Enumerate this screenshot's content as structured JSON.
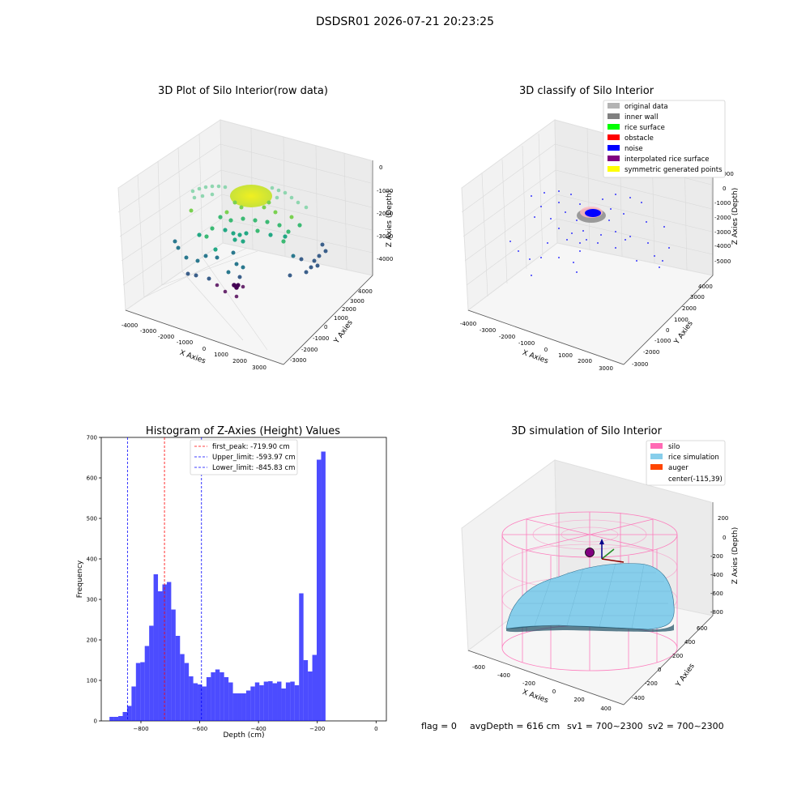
{
  "figure": {
    "suptitle": "DSDSR01 2026-07-21 20:23:25",
    "footer": {
      "flag": "flag = 0",
      "avg_depth": "avgDepth = 616 cm",
      "sv1": "sv1 = 700~2300",
      "sv2": "sv2 = 700~2300"
    }
  },
  "panels": {
    "raw": {
      "title": "3D Plot of Silo Interior(row data)",
      "xlabel": "X Axies",
      "ylabel": "Y Axies",
      "zlabel": "Z Axies (Depth)",
      "xticks": [
        "-4000",
        "-3000",
        "-2000",
        "-1000",
        "0",
        "1000",
        "2000",
        "3000"
      ],
      "yticks": [
        "-3000",
        "-2000",
        "-1000",
        "0",
        "1000",
        "2000",
        "3000",
        "4000"
      ],
      "zticks": [
        "-4000",
        "-3000",
        "-2000",
        "-1000",
        "0"
      ]
    },
    "classify": {
      "title": "3D classify of Silo Interior",
      "xlabel": "X Axies",
      "ylabel": "Y Axies",
      "zlabel": "Z Axies (Depth)",
      "xticks": [
        "-4000",
        "-3000",
        "-2000",
        "-1000",
        "0",
        "1000",
        "2000",
        "3000"
      ],
      "yticks": [
        "-3000",
        "-2000",
        "-1000",
        "0",
        "1000",
        "2000",
        "3000",
        "4000"
      ],
      "zticks": [
        "-5000",
        "-4000",
        "-3000",
        "-2000",
        "-1000",
        "0",
        "1000"
      ],
      "legend": [
        {
          "label": "original data",
          "color": "#b3b3b3"
        },
        {
          "label": "inner wall",
          "color": "#808080"
        },
        {
          "label": "rice surface",
          "color": "#00ff00"
        },
        {
          "label": "obstacle",
          "color": "#ff0000"
        },
        {
          "label": "noise",
          "color": "#0000ff"
        },
        {
          "label": "interpolated rice surface",
          "color": "#800080"
        },
        {
          "label": "symmetric generated points",
          "color": "#ffff00"
        }
      ]
    },
    "simulation": {
      "title": "3D simulation of Silo Interior",
      "xlabel": "X Axies",
      "ylabel": "Y Axies",
      "zlabel": "Z Axies (Depth)",
      "xticks": [
        "-600",
        "-400",
        "-200",
        "0",
        "200",
        "400"
      ],
      "yticks": [
        "-400",
        "-200",
        "0",
        "200",
        "400",
        "600"
      ],
      "zticks": [
        "-800",
        "-600",
        "-400",
        "-200",
        "0",
        "200"
      ],
      "legend": [
        {
          "label": "silo",
          "color": "#ff69b4"
        },
        {
          "label": "rice simulation",
          "color": "#87ceeb"
        },
        {
          "label": "auger",
          "color": "#ff4500"
        },
        {
          "label": "center(-115,39)",
          "color": ""
        }
      ]
    }
  },
  "chart_data": {
    "type": "bar",
    "title": "Histogram of Z-Axies (Height) Values",
    "xlabel": "Depth (cm)",
    "ylabel": "Frequency",
    "xlim": [
      -935,
      35
    ],
    "ylim": [
      0,
      700
    ],
    "xticks": [
      -800,
      -600,
      -400,
      -200,
      0
    ],
    "yticks": [
      0,
      100,
      200,
      300,
      400,
      500,
      600,
      700
    ],
    "bin_start": -907,
    "bin_width": 15,
    "values": [
      10,
      10,
      12,
      22,
      37,
      85,
      143,
      145,
      185,
      235,
      362,
      320,
      337,
      343,
      275,
      210,
      165,
      143,
      110,
      93,
      90,
      85,
      108,
      120,
      127,
      120,
      108,
      95,
      68,
      68,
      68,
      75,
      85,
      95,
      88,
      97,
      98,
      93,
      97,
      80,
      95,
      97,
      88,
      315,
      150,
      122,
      163,
      645,
      665
    ],
    "bar_color": "#0000ff",
    "bar_alpha": 0.7,
    "legend": [
      {
        "label": "first_peak: -719.90 cm",
        "value": -719.9,
        "color": "#ff0000"
      },
      {
        "label": "Upper_limit: -593.97 cm",
        "value": -593.97,
        "color": "#0000ff"
      },
      {
        "label": "Lower_limit: -845.83 cm",
        "value": -845.83,
        "color": "#0000ff"
      }
    ],
    "legend_loc": "upper center"
  }
}
